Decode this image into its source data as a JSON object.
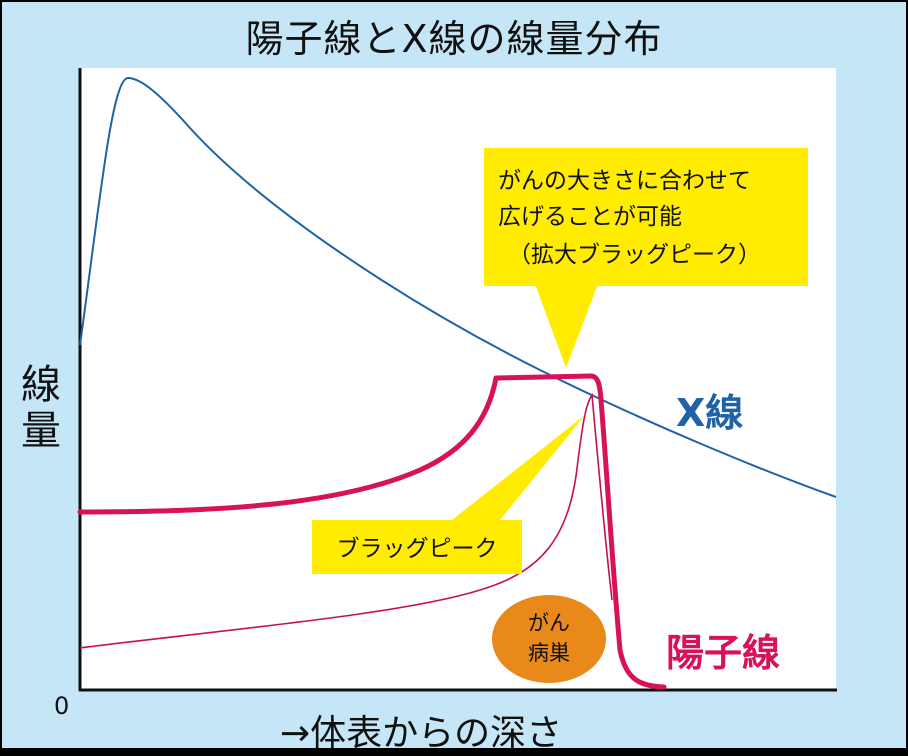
{
  "title": "陽子線とX線の線量分布",
  "axis": {
    "ylabel": "線量",
    "xlabel": "→体表からの深さ",
    "origin": "0"
  },
  "labels": {
    "xray": "X線",
    "proton": "陽子線",
    "bragg_peak": "ブラッグピーク",
    "tumor_line1": "がん",
    "tumor_line2": "病巣",
    "callout_line1": "がんの大きさに合わせて",
    "callout_line2": "広げることが可能",
    "callout_line3": "（拡大ブラッグピーク）"
  },
  "colors": {
    "background": "#c5e6f6",
    "plot_area": "#ffffff",
    "xray": "#1f62a6",
    "proton": "#d8125a",
    "callout": "#ffec00",
    "tumor": "#e8891a"
  }
}
